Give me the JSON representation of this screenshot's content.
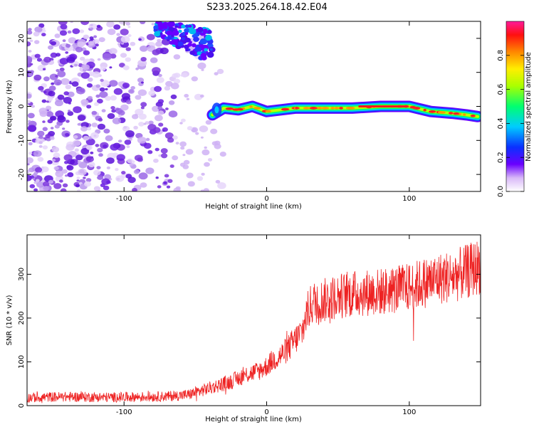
{
  "title": "S233.2025.264.18.42.E04",
  "chart_data": [
    {
      "type": "heatmap",
      "xlabel": "Height of straight line (km)",
      "ylabel": "Frequency (Hz)",
      "xlim": [
        -168,
        150
      ],
      "ylim": [
        -25,
        25
      ],
      "xticks": [
        -100,
        0,
        100
      ],
      "yticks": [
        -20,
        -10,
        0,
        10,
        20
      ],
      "colorbar": {
        "label": "Normalized spectral amplitude",
        "range": [
          0,
          1
        ],
        "ticks": [
          0.0,
          0.2,
          0.4,
          0.6,
          0.8
        ]
      },
      "ridge_line": {
        "description_points_x_km": [
          -38,
          -30,
          -20,
          -10,
          0,
          20,
          40,
          60,
          80,
          100,
          115,
          130,
          140,
          148
        ],
        "frequency_hz": [
          -2.5,
          -0.5,
          -1,
          0,
          -1.5,
          -0.5,
          -0.5,
          -0.5,
          0,
          0,
          -1.5,
          -2,
          -2.5,
          -3
        ]
      },
      "noise_region_km": [
        -168,
        -30
      ],
      "noise_cluster": {
        "x_range_km": [
          -78,
          -38
        ],
        "freq_range_hz": [
          14,
          25
        ]
      }
    },
    {
      "type": "line",
      "xlabel": "Height of straight line (km)",
      "ylabel": "SNR (10 * v/v)",
      "xlim": [
        -168,
        150
      ],
      "ylim": [
        0,
        390
      ],
      "xticks": [
        -100,
        0,
        100
      ],
      "yticks": [
        0,
        100,
        200,
        300
      ],
      "series": [
        {
          "name": "SNR",
          "color": "#ee2222",
          "x": [
            -168,
            -150,
            -130,
            -110,
            -90,
            -70,
            -55,
            -45,
            -35,
            -25,
            -15,
            -5,
            0,
            5,
            10,
            15,
            20,
            25,
            28,
            32,
            40,
            50,
            60,
            70,
            80,
            90,
            100,
            110,
            120,
            130,
            140,
            150
          ],
          "values": [
            18,
            20,
            20,
            19,
            20,
            21,
            25,
            35,
            45,
            55,
            70,
            80,
            90,
            105,
            115,
            130,
            150,
            170,
            210,
            235,
            240,
            250,
            255,
            258,
            260,
            265,
            270,
            280,
            290,
            295,
            305,
            320
          ]
        }
      ]
    }
  ],
  "colors": {
    "signal": "#ee2222",
    "noise_dark": "#6622dd",
    "noise_light": "#d9c2f5"
  }
}
